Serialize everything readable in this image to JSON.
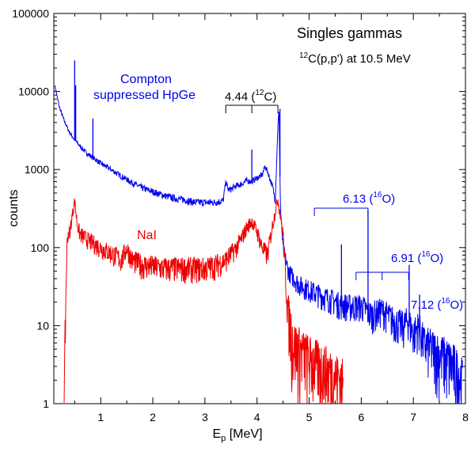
{
  "chart_data": {
    "type": "line",
    "title": "Singles gammas",
    "subtitle": {
      "pre": "12",
      "text": "C(p,p') at 10.5 MeV"
    },
    "xlabel": {
      "main": "E",
      "sub": "p",
      "rest": " [MeV]"
    },
    "ylabel": "counts",
    "xlim": [
      0.1,
      8.0
    ],
    "ylim": [
      1,
      100000
    ],
    "yscale": "log",
    "xticks": [
      "1",
      "2",
      "3",
      "4",
      "5",
      "6",
      "7",
      "8"
    ],
    "yticks": [
      "1",
      "10",
      "100",
      "1000",
      "10000",
      "100000"
    ],
    "grid": false,
    "colors": {
      "hpge": "#0000ee",
      "nai": "#ee0000",
      "annotation_4_44": "#000000"
    },
    "series": [
      {
        "name": "Compton suppressed HpGe",
        "x": [
          0.12,
          0.2,
          0.3,
          0.4,
          0.5,
          0.6,
          0.7,
          0.8,
          0.9,
          1.0,
          1.2,
          1.4,
          1.6,
          1.8,
          2.0,
          2.2,
          2.4,
          2.6,
          2.8,
          3.0,
          3.2,
          3.35,
          3.4,
          3.45,
          3.5,
          3.6,
          3.7,
          3.8,
          3.9,
          4.0,
          4.1,
          4.15,
          4.2,
          4.3,
          4.35,
          4.4,
          4.42,
          4.45,
          4.5,
          4.6,
          4.8,
          5.0,
          5.2,
          5.4,
          5.6,
          5.8,
          6.0,
          6.2,
          6.4,
          6.6,
          6.8,
          6.9,
          7.0,
          7.1,
          7.2,
          7.4,
          7.6,
          7.8,
          7.95
        ],
        "y": [
          12000,
          6500,
          4200,
          3000,
          2400,
          2000,
          1700,
          1500,
          1350,
          1200,
          1000,
          820,
          680,
          580,
          520,
          470,
          430,
          410,
          380,
          380,
          380,
          400,
          700,
          550,
          560,
          620,
          650,
          720,
          700,
          780,
          850,
          1100,
          950,
          600,
          400,
          3500,
          6000,
          300,
          100,
          50,
          34,
          29,
          25,
          22,
          19,
          18,
          18,
          14,
          16,
          12,
          10,
          12,
          8,
          10,
          6,
          5,
          4,
          3,
          2
        ],
        "peaks": [
          {
            "x": 0.5,
            "y": 25000
          },
          {
            "x": 0.52,
            "y": 12000
          },
          {
            "x": 0.85,
            "y": 4500
          },
          {
            "x": 3.9,
            "y": 1800
          },
          {
            "x": 4.44,
            "y": 6000
          },
          {
            "x": 5.62,
            "y": 110
          },
          {
            "x": 6.13,
            "y": 300
          },
          {
            "x": 6.92,
            "y": 60
          },
          {
            "x": 7.12,
            "y": 25
          }
        ]
      },
      {
        "name": "NaI",
        "x": [
          0.28,
          0.3,
          0.32,
          0.35,
          0.37,
          0.4,
          0.45,
          0.5,
          0.55,
          0.6,
          0.8,
          1.0,
          1.2,
          1.4,
          1.5,
          1.6,
          1.8,
          2.0,
          2.2,
          2.5,
          2.8,
          3.0,
          3.2,
          3.4,
          3.6,
          3.7,
          3.8,
          3.9,
          4.0,
          4.1,
          4.2,
          4.3,
          4.4,
          4.5,
          4.55,
          4.6,
          4.7,
          5.0,
          5.3,
          5.65
        ],
        "y": [
          1,
          1,
          10,
          100,
          150,
          150,
          250,
          400,
          200,
          150,
          120,
          100,
          85,
          70,
          100,
          70,
          60,
          58,
          55,
          55,
          55,
          55,
          60,
          70,
          100,
          130,
          180,
          220,
          160,
          100,
          80,
          200,
          420,
          150,
          40,
          15,
          6,
          4,
          3,
          2
        ]
      }
    ],
    "annotations": [
      {
        "label": "4.44 (",
        "iso": "12",
        "el": "C)",
        "x_from": 3.4,
        "x_to": 4.4,
        "x_mid": 3.9,
        "color_key": "annotation_4_44"
      },
      {
        "label": "6.13 (",
        "iso": "16",
        "el": "O)",
        "x_from": 5.1,
        "x_to": 6.13,
        "color_key": "hpge"
      },
      {
        "label": "6.91 (",
        "iso": "16",
        "el": "O)",
        "x_from": 5.9,
        "x_to": 6.91,
        "x_mid": 6.4,
        "color_key": "hpge"
      },
      {
        "label": "7.12 (",
        "iso": "16",
        "el": "O)",
        "color_key": "hpge"
      }
    ],
    "series_labels": {
      "hpge_line1": "Compton",
      "hpge_line2": "suppressed HpGe",
      "nai": "NaI"
    }
  }
}
